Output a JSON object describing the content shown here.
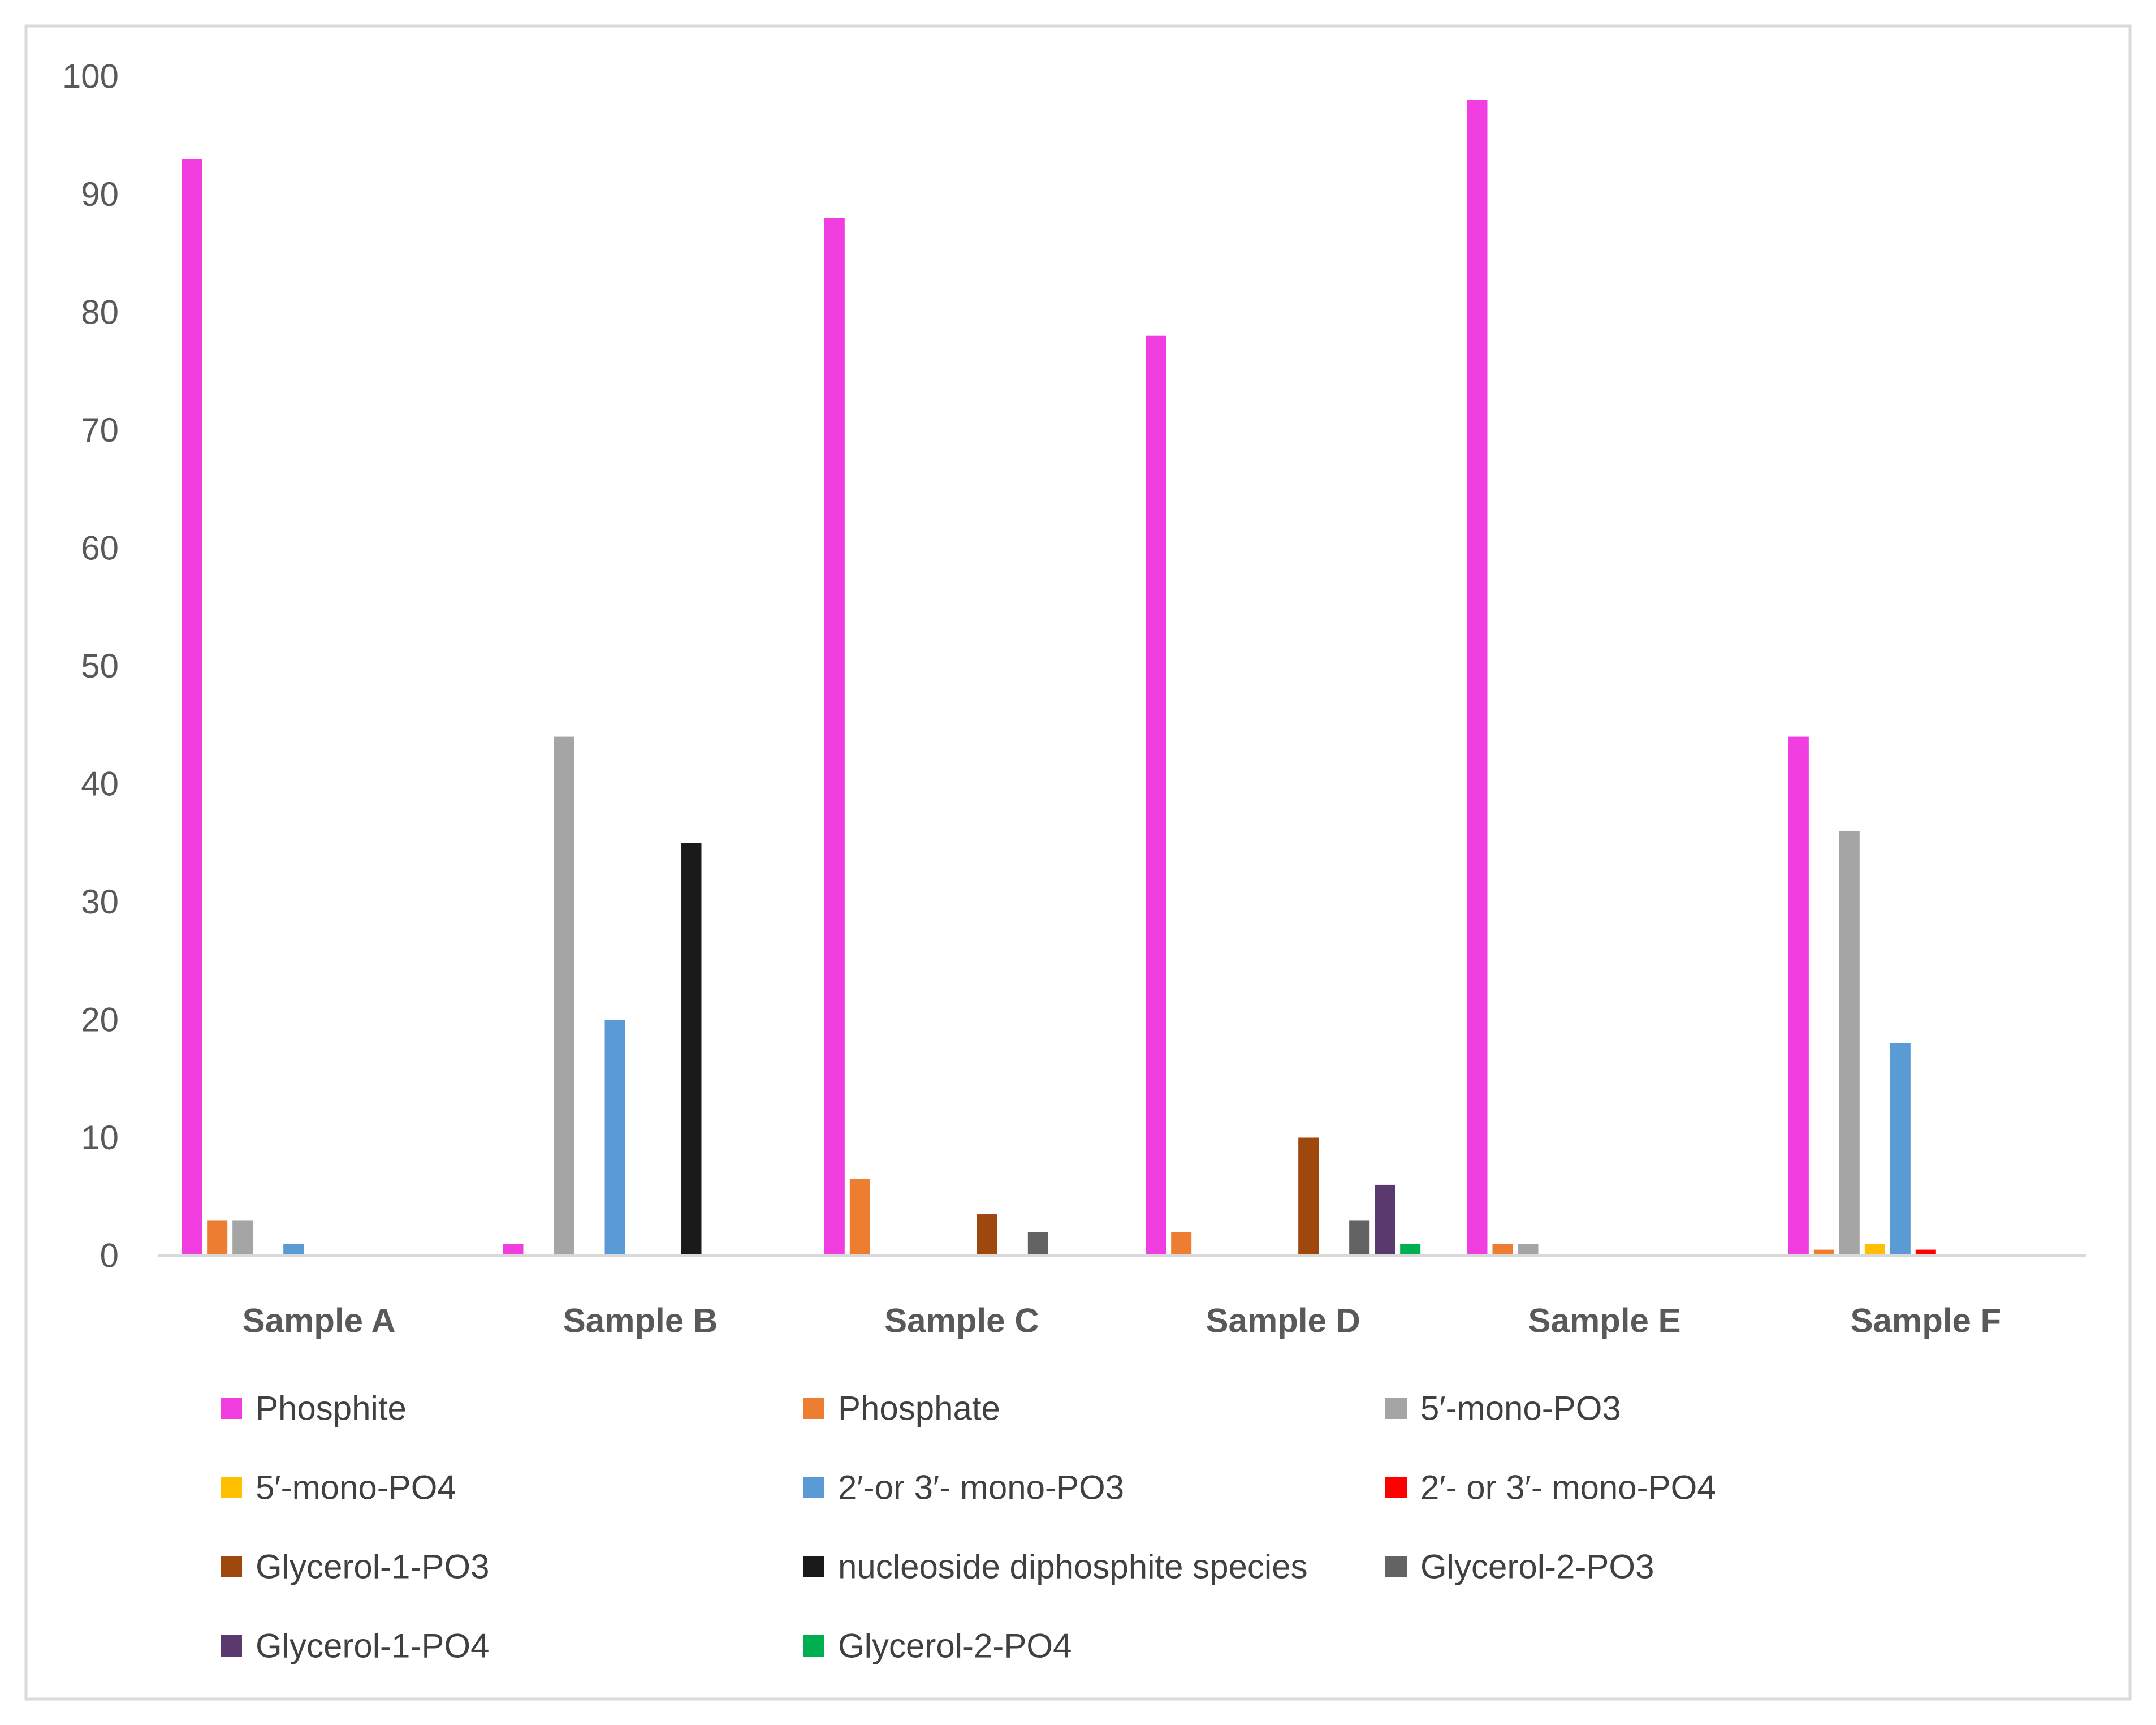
{
  "chart_data": {
    "type": "bar",
    "title": "",
    "xlabel": "",
    "ylabel": "",
    "ylim": [
      0,
      100
    ],
    "yticks": [
      0,
      10,
      20,
      30,
      40,
      50,
      60,
      70,
      80,
      90,
      100
    ],
    "grid": false,
    "legend_position": "bottom",
    "categories": [
      "Sample A",
      "Sample B",
      "Sample C",
      "Sample D",
      "Sample E",
      "Sample F"
    ],
    "series": [
      {
        "name": "Phosphite",
        "color": "#f03ee0",
        "values": [
          93,
          1,
          88,
          78,
          98,
          44
        ]
      },
      {
        "name": "Phosphate",
        "color": "#ed7d31",
        "values": [
          3,
          0,
          6.5,
          2,
          1,
          0.5
        ]
      },
      {
        "name": "5′-mono-PO3",
        "color": "#a5a5a5",
        "values": [
          3,
          44,
          0,
          0,
          1,
          36
        ]
      },
      {
        "name": "5′-mono-PO4",
        "color": "#ffc000",
        "values": [
          0,
          0,
          0,
          0,
          0,
          1
        ]
      },
      {
        "name": "2′-or 3′- mono-PO3",
        "color": "#5b9bd5",
        "values": [
          1,
          20,
          0,
          0,
          0,
          18
        ]
      },
      {
        "name": "2′- or 3′- mono-PO4",
        "color": "#ff0000",
        "values": [
          0,
          0,
          0,
          0,
          0,
          0.5
        ]
      },
      {
        "name": "Glycerol-1-PO3",
        "color": "#9e480e",
        "values": [
          0,
          0,
          3.5,
          10,
          0,
          0
        ]
      },
      {
        "name": "nucleoside diphosphite species",
        "color": "#1a1a1a",
        "values": [
          0,
          35,
          0,
          0,
          0,
          0
        ]
      },
      {
        "name": "Glycerol-2-PO3",
        "color": "#636363",
        "values": [
          0,
          0,
          2,
          3,
          0,
          0
        ]
      },
      {
        "name": "Glycerol-1-PO4",
        "color": "#5a3a6e",
        "values": [
          0,
          0,
          0,
          6,
          0,
          0
        ]
      },
      {
        "name": "Glycerol-2-PO4",
        "color": "#00b050",
        "values": [
          0,
          0,
          0,
          1,
          0,
          0
        ]
      }
    ]
  }
}
